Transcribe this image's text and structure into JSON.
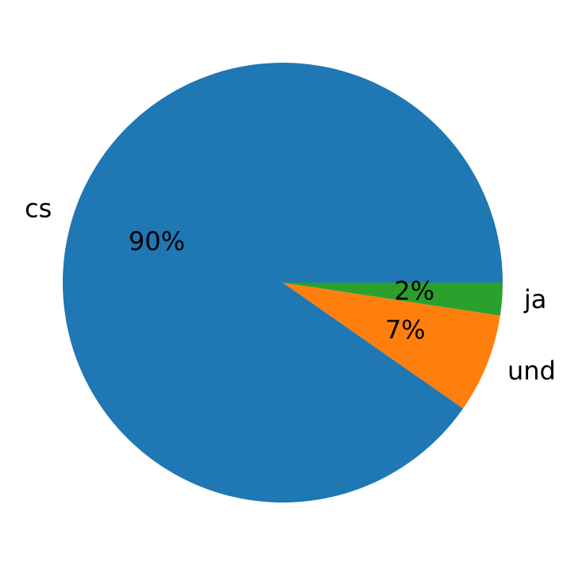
{
  "chart_data": {
    "type": "pie",
    "categories": [
      "cs",
      "und",
      "ja"
    ],
    "values": [
      90.3,
      7.3,
      2.4
    ],
    "value_labels": [
      "90%",
      "7%",
      "2%"
    ],
    "colors": [
      "#1f77b4",
      "#ff7f0e",
      "#2ca02c"
    ]
  }
}
